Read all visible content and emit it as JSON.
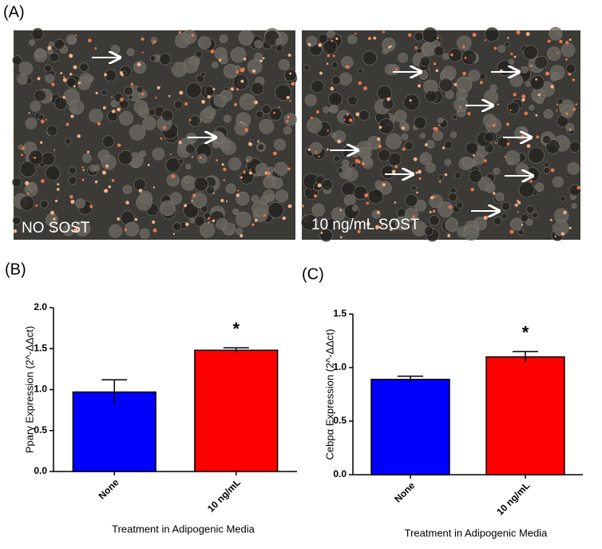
{
  "figure": {
    "panel_labels": [
      "(A)",
      "(B)",
      "(C)"
    ],
    "image_captions": [
      "NO SOST",
      "10 ng/mL SOST"
    ]
  },
  "chart_data": [
    {
      "type": "bar",
      "ylabel": "Pparγ Expression (2^-ΔΔct)",
      "xlabel": "Treatment in Adipogenic Media",
      "categories": [
        "None",
        "10 ng/mL"
      ],
      "values": [
        0.97,
        1.48
      ],
      "errors": [
        0.15,
        0.03
      ],
      "colors": [
        "#0000ff",
        "#ff0000"
      ],
      "annotation": "*",
      "ylim": [
        0,
        2.0
      ],
      "yticks": [
        {
          "value": 0,
          "label": "0.0"
        },
        {
          "value": 0.5,
          "label": "0.5"
        },
        {
          "value": 1,
          "label": "1.0"
        },
        {
          "value": 1.5,
          "label": "1.5"
        },
        {
          "value": 2,
          "label": "2.0"
        }
      ]
    },
    {
      "type": "bar",
      "ylabel": "Cebpα Expression (2^-ΔΔct)",
      "xlabel": "Treatment in Adipogenic Media",
      "categories": [
        "None",
        "10 ng/mL"
      ],
      "values": [
        0.89,
        1.1
      ],
      "errors": [
        0.03,
        0.05
      ],
      "colors": [
        "#0000ff",
        "#ff0000"
      ],
      "annotation": "*",
      "ylim": [
        0,
        1.5
      ],
      "yticks": [
        {
          "value": 0,
          "label": "0.0"
        },
        {
          "value": 0.5,
          "label": "0.5"
        },
        {
          "value": 1,
          "label": "1.0"
        },
        {
          "value": 1.5,
          "label": "1.5"
        }
      ]
    }
  ]
}
